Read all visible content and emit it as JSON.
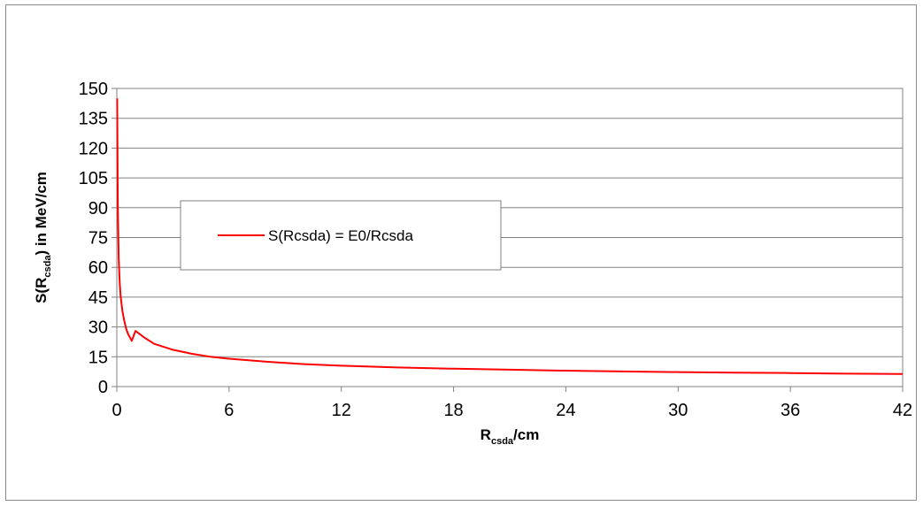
{
  "chart_data": {
    "type": "line",
    "title": "",
    "xlabel": {
      "main": "R",
      "sub": "csda",
      "suffix": "/cm"
    },
    "ylabel": {
      "pre": "S(R",
      "sub": "csda",
      "post": ") in MeV/cm"
    },
    "xlim": [
      0,
      42
    ],
    "ylim": [
      0,
      150
    ],
    "x_ticks": [
      "0",
      "6",
      "12",
      "18",
      "24",
      "30",
      "36",
      "42"
    ],
    "y_ticks": [
      "0",
      "15",
      "30",
      "45",
      "60",
      "75",
      "90",
      "105",
      "120",
      "135",
      "150"
    ],
    "grid": {
      "horizontal": true,
      "vertical": false
    },
    "legend_position": "center-left",
    "series": [
      {
        "name": "S(Rcsda) = E0/Rcsda",
        "color": "#ff0000",
        "x": [
          0.02,
          0.05,
          0.1,
          0.15,
          0.2,
          0.3,
          0.4,
          0.5,
          0.6,
          0.8,
          1.0,
          1.5,
          2.0,
          3.0,
          4.0,
          5.0,
          6.0,
          8.0,
          10.0,
          12.0,
          15.0,
          18.0,
          21.0,
          24.0,
          27.0,
          30.0,
          33.0,
          36.0,
          39.0,
          42.0
        ],
        "y": [
          145,
          92,
          65,
          53,
          46,
          38,
          33,
          29,
          26.5,
          23,
          28,
          24.5,
          21.5,
          18.5,
          16.5,
          15,
          14,
          12.5,
          11.3,
          10.5,
          9.6,
          9.0,
          8.5,
          8.0,
          7.6,
          7.3,
          7.0,
          6.8,
          6.5,
          6.3
        ]
      }
    ]
  }
}
